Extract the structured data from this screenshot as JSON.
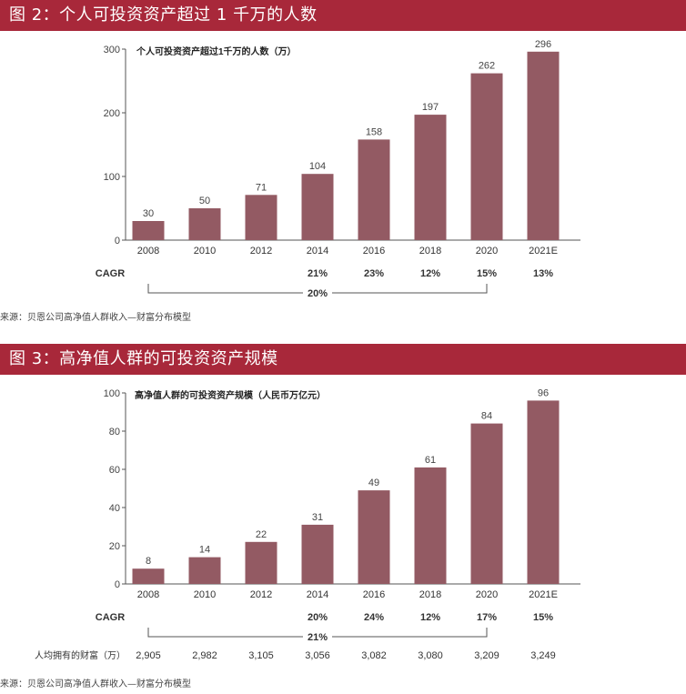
{
  "figure1": {
    "header": "图 2：个人可投资资产超过 1 千万的人数",
    "source": "来源：贝恩公司高净值人群收入—财富分布模型",
    "chart_data": {
      "type": "bar",
      "title": "个人可投资资产超过1千万的人数（万）",
      "categories": [
        "2008",
        "2010",
        "2012",
        "2014",
        "2016",
        "2018",
        "2020",
        "2021E"
      ],
      "values": [
        30,
        50,
        71,
        104,
        158,
        197,
        262,
        296
      ],
      "ylim": [
        0,
        300
      ],
      "yticks": [
        "0",
        "100",
        "200",
        "300"
      ],
      "bar_color": "#935a63",
      "cagr_label": "CAGR",
      "cagr": [
        "",
        "",
        "",
        "21%",
        "23%",
        "12%",
        "15%",
        "13%"
      ],
      "overall_cagr": "20%"
    }
  },
  "figure2": {
    "header": "图 3：高净值人群的可投资资产规模",
    "source": "来源：贝恩公司高净值人群收入—财富分布模型",
    "chart_data": {
      "type": "bar",
      "title": "高净值人群的可投资资产规模（人民币万亿元）",
      "categories": [
        "2008",
        "2010",
        "2012",
        "2014",
        "2016",
        "2018",
        "2020",
        "2021E"
      ],
      "values": [
        8,
        14,
        22,
        31,
        49,
        61,
        84,
        96
      ],
      "ylim": [
        0,
        100
      ],
      "yticks": [
        "0",
        "20",
        "40",
        "60",
        "80",
        "100"
      ],
      "bar_color": "#935a63",
      "cagr_label": "CAGR",
      "cagr": [
        "",
        "",
        "",
        "20%",
        "24%",
        "12%",
        "17%",
        "15%"
      ],
      "overall_cagr": "21%",
      "wealth_label": "人均拥有的财富（万）",
      "wealth": [
        "2,905",
        "2,982",
        "3,105",
        "3,056",
        "3,082",
        "3,080",
        "3,209",
        "3,249"
      ]
    }
  }
}
